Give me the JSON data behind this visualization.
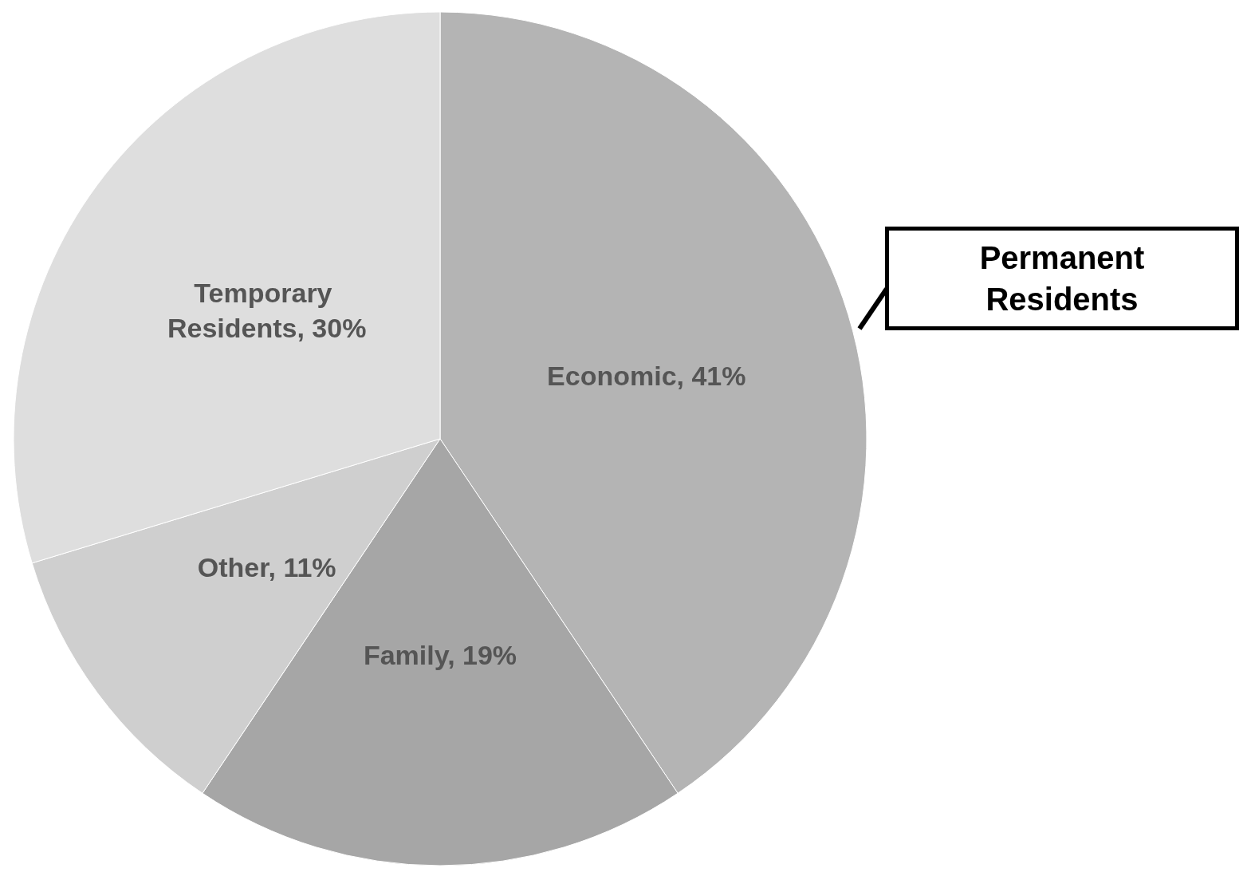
{
  "chart_data": {
    "type": "pie",
    "categories": [
      "Economic, 41%",
      "Family, 19%",
      "Other, 11%",
      "Temporary Residents, 30%"
    ],
    "values": [
      41,
      19,
      11,
      30
    ],
    "colors": [
      "#b4b4b4",
      "#a6a6a6",
      "#cfcfcf",
      "#dedede"
    ],
    "annotations": [
      "Permanent Residents"
    ]
  }
}
